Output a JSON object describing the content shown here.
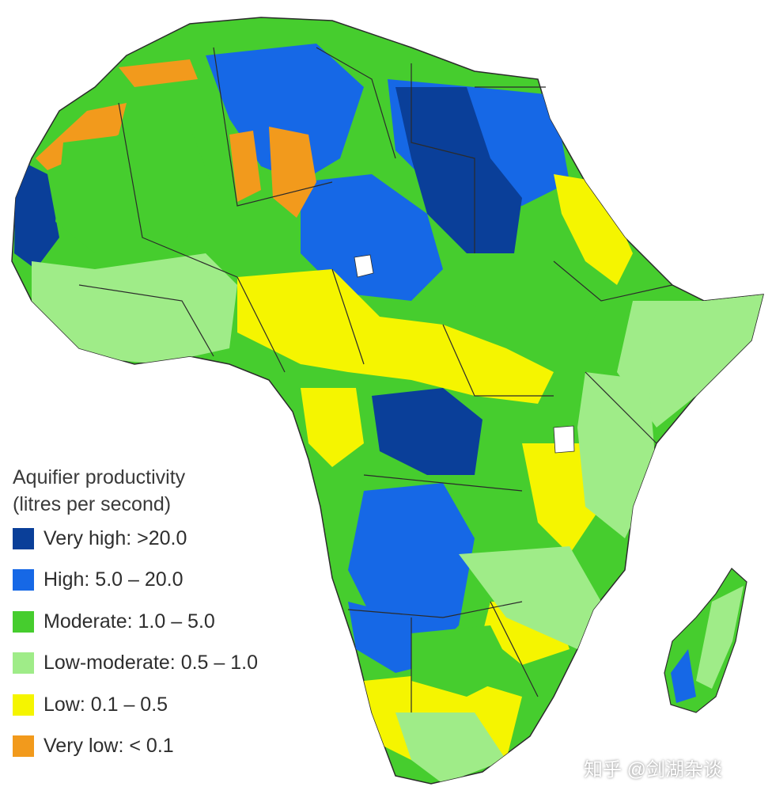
{
  "legend": {
    "title_line1": "Aquifier productivity",
    "title_line2": "(litres per second)",
    "items": [
      {
        "label": "Very high: >20.0",
        "color": "#0a3f99"
      },
      {
        "label": "High: 5.0 – 20.0",
        "color": "#1668e6"
      },
      {
        "label": "Moderate: 1.0 – 5.0",
        "color": "#46cd2e"
      },
      {
        "label": "Low-moderate: 0.5 – 1.0",
        "color": "#9fec88"
      },
      {
        "label": "Low: 0.1 – 0.5",
        "color": "#f5f500"
      },
      {
        "label": "Very low: < 0.1",
        "color": "#f29a1c"
      }
    ]
  },
  "watermark": "知乎 @剑湖杂谈",
  "colors": {
    "background": "#ffffff",
    "border": "#2b2b2b"
  }
}
